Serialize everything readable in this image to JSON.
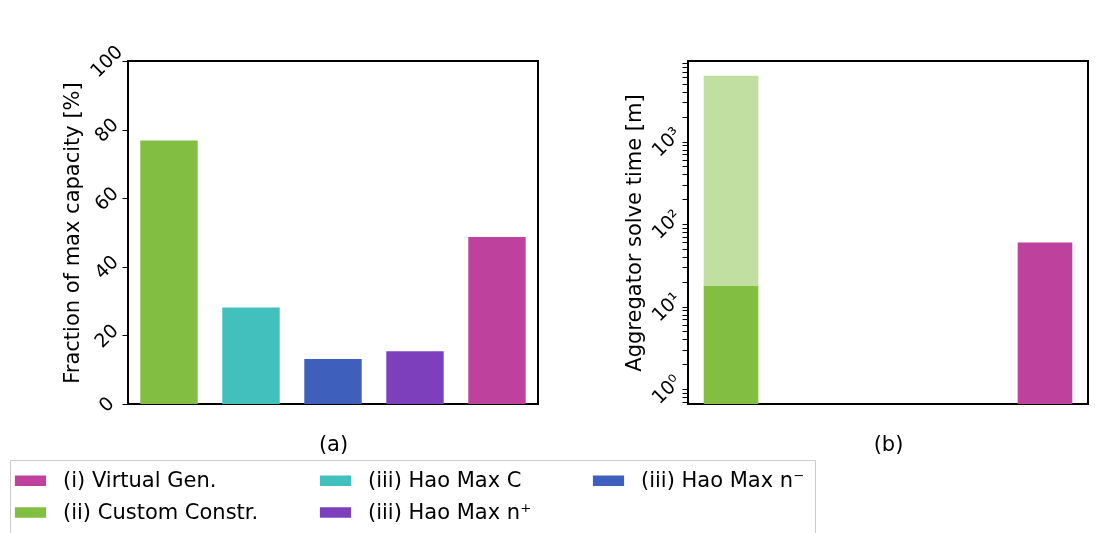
{
  "chart_data": [
    {
      "type": "bar",
      "xlabel": "(a)",
      "ylabel": "Fraction of max capacity [%]",
      "categories": [
        null,
        null,
        null,
        null,
        null
      ],
      "stacked": true,
      "ylim": [
        0,
        100
      ],
      "yticks": [
        0,
        20,
        40,
        60,
        80,
        100
      ],
      "legend": "bottom",
      "grid": false,
      "series": [
        {
          "name": "(i) Virtual Gen.",
          "color": "#bf419e",
          "values": [
            null,
            null,
            null,
            null,
            48.7
          ]
        },
        {
          "name": "(iii) Hao Max C",
          "color": "#41c0be",
          "values": [
            null,
            28.1,
            null,
            null,
            null
          ]
        },
        {
          "name": "(iii) Hao Max n⁻",
          "color": "#3f5fbd",
          "values": [
            null,
            null,
            13.1,
            null,
            null
          ]
        },
        {
          "name": "(ii) Custom Constr.",
          "color": "#82be41",
          "values": [
            76.8,
            null,
            null,
            null,
            null
          ]
        },
        {
          "name": "(iii) Hao Max n⁺",
          "color": "#7e3fbd",
          "values": [
            null,
            null,
            null,
            15.4,
            null
          ]
        }
      ]
    },
    {
      "type": "bar",
      "xlabel": "(b)",
      "ylabel": "Aggregator solve time [m]",
      "categories": [
        null,
        null
      ],
      "log": "y",
      "stacked": true,
      "ylim": [
        0.66,
        9500
      ],
      "grid": false,
      "yticks": [
        {
          "value": 0.7,
          "label": null
        },
        {
          "value": 0.8,
          "label": null
        },
        {
          "value": 0.9,
          "label": null
        },
        {
          "value": 1,
          "label": "10⁰"
        },
        {
          "value": 2,
          "label": null
        },
        {
          "value": 3,
          "label": null
        },
        {
          "value": 4,
          "label": null
        },
        {
          "value": 5,
          "label": null
        },
        {
          "value": 6,
          "label": null
        },
        {
          "value": 7,
          "label": null
        },
        {
          "value": 8,
          "label": null
        },
        {
          "value": 9,
          "label": null
        },
        {
          "value": 10,
          "label": "10¹"
        },
        {
          "value": 20,
          "label": null
        },
        {
          "value": 30,
          "label": null
        },
        {
          "value": 40,
          "label": null
        },
        {
          "value": 50,
          "label": null
        },
        {
          "value": 60,
          "label": null
        },
        {
          "value": 70,
          "label": null
        },
        {
          "value": 80,
          "label": null
        },
        {
          "value": 90,
          "label": null
        },
        {
          "value": 100,
          "label": "10²"
        },
        {
          "value": 200,
          "label": null
        },
        {
          "value": 300,
          "label": null
        },
        {
          "value": 400,
          "label": null
        },
        {
          "value": 500,
          "label": null
        },
        {
          "value": 600,
          "label": null
        },
        {
          "value": 700,
          "label": null
        },
        {
          "value": 800,
          "label": null
        },
        {
          "value": 900,
          "label": null
        },
        {
          "value": 1000,
          "label": "10³"
        },
        {
          "value": 2000,
          "label": null
        },
        {
          "value": 3000,
          "label": null
        },
        {
          "value": 4000,
          "label": null
        },
        {
          "value": 5000,
          "label": null
        },
        {
          "value": 6000,
          "label": null
        },
        {
          "value": 7000,
          "label": null
        },
        {
          "value": 8000,
          "label": null
        },
        {
          "value": 9000,
          "label": null
        }
      ],
      "series": [
        {
          "colors": [
            "#82be41",
            "#bf419e"
          ],
          "values": [
            18,
            60
          ]
        },
        {
          "color": "#c0dfa0",
          "values": [
            6280,
            null
          ]
        }
      ]
    }
  ]
}
